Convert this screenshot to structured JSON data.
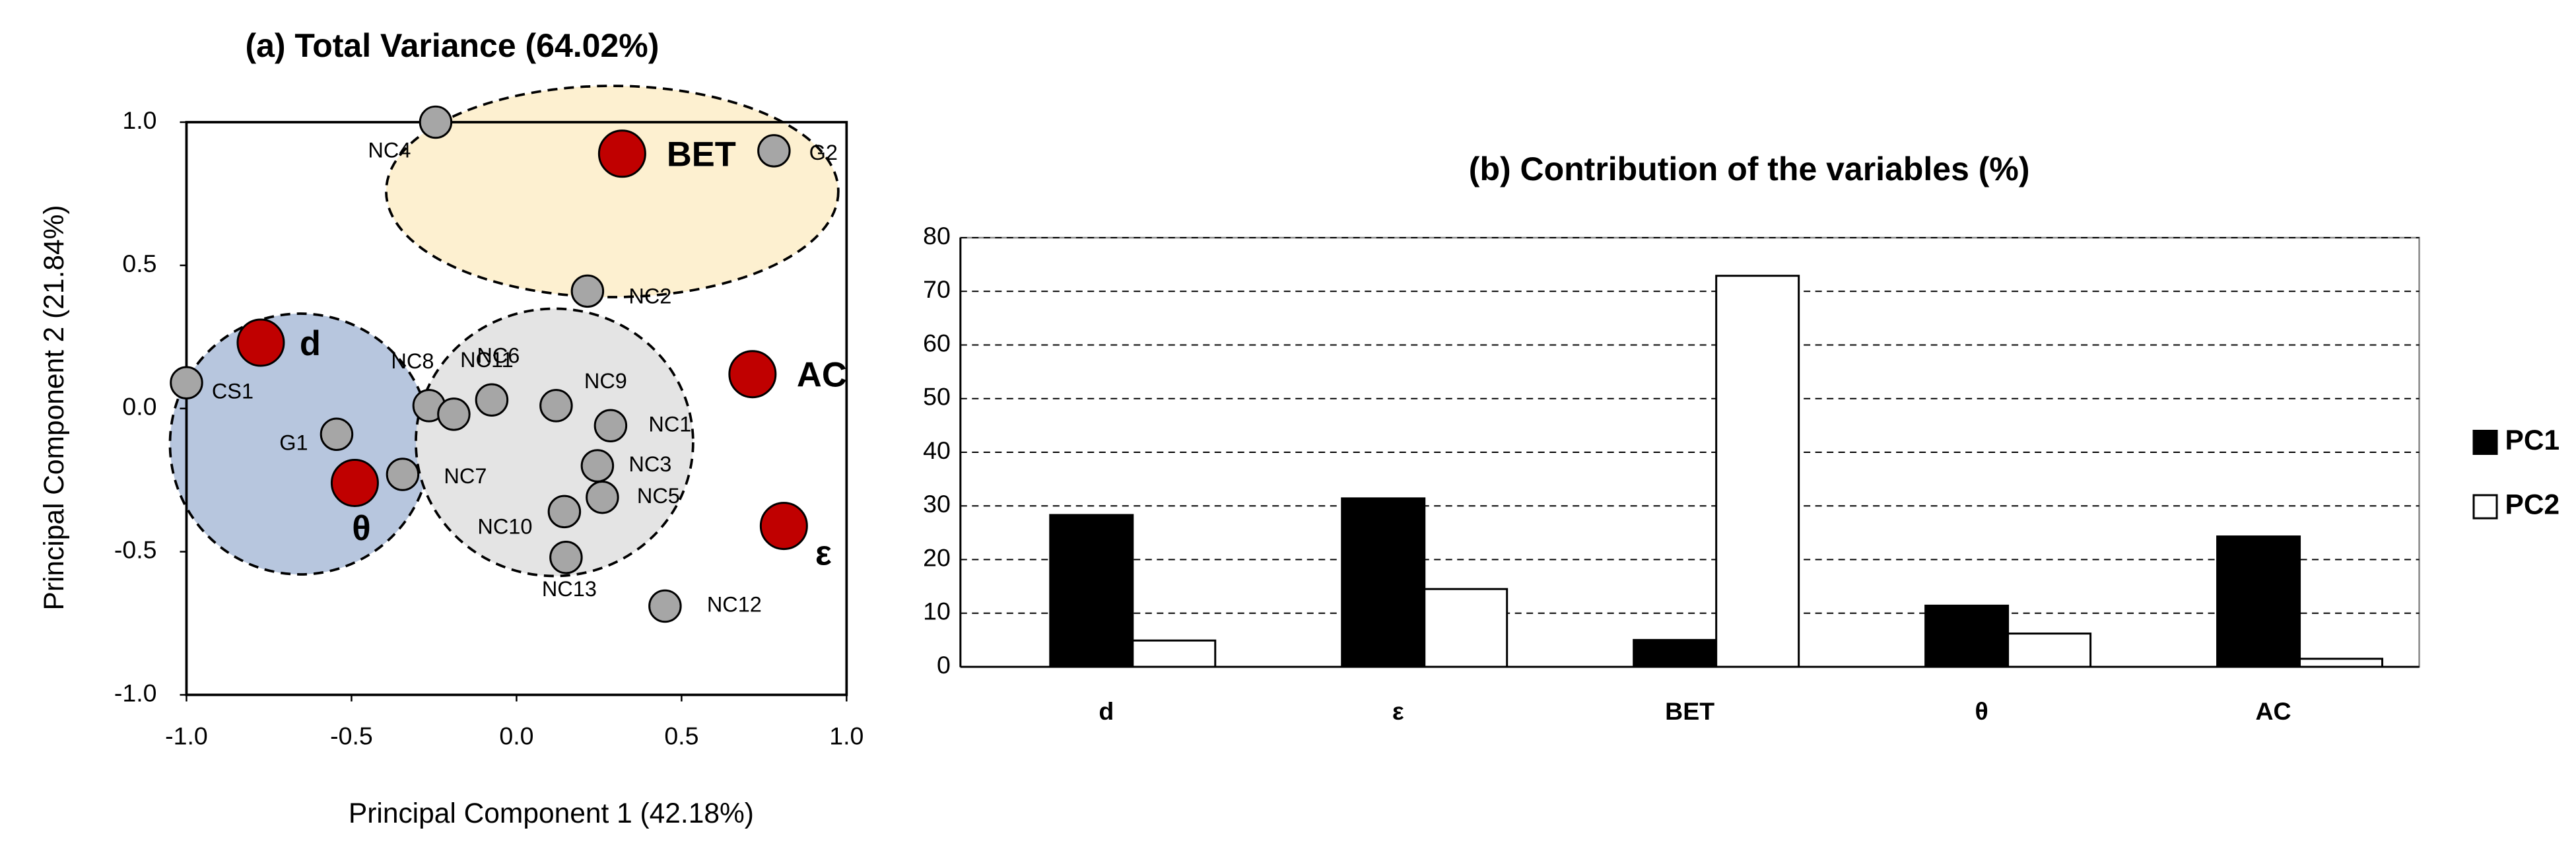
{
  "chart_data": [
    {
      "type": "scatter",
      "title": "(a) Total Variance (64.02%)",
      "x_label": "Principal Component 1 (42.18%)",
      "y_label": "Principal Component 2 (21.84%)",
      "xlim": [
        -1.0,
        1.0
      ],
      "ylim": [
        -1.0,
        1.0
      ],
      "xticks": [
        {
          "value": -1.0,
          "label": "-1.0"
        },
        {
          "value": -0.5,
          "label": "-0.5"
        },
        {
          "value": 0,
          "label": "0.0"
        },
        {
          "value": 0.5,
          "label": "0.5"
        },
        {
          "value": 1.0,
          "label": "1.0"
        }
      ],
      "yticks": [
        {
          "value": -1.0,
          "label": "-1.0"
        },
        {
          "value": -0.5,
          "label": "-0.5"
        },
        {
          "value": 0,
          "label": "0.0"
        },
        {
          "value": 0.5,
          "label": "0.5"
        },
        {
          "value": 1.0,
          "label": "1.0"
        }
      ],
      "series": [
        {
          "color": "#a6a6a6",
          "labels": [
            "NC4",
            "G2",
            "NC2",
            "CS1",
            "G1",
            "NC8",
            "NC11",
            "NC6",
            "NC9",
            "NC1",
            "NC3",
            "NC5",
            "NC10",
            "NC13",
            "NC12",
            "NC7"
          ],
          "x": [
            -0.245,
            0.78,
            0.215,
            -1.0,
            -0.545,
            -0.265,
            -0.19,
            -0.075,
            0.12,
            0.285,
            0.245,
            0.26,
            0.145,
            0.15,
            0.45,
            -0.345
          ],
          "values": [
            1.0,
            0.9,
            0.41,
            0.09,
            -0.09,
            0.01,
            -0.02,
            0.03,
            0.01,
            -0.06,
            -0.2,
            -0.31,
            -0.36,
            -0.52,
            -0.69,
            -0.23
          ]
        },
        {
          "color": "#c00000",
          "labels": [
            "d",
            "BET",
            "AC",
            "ε",
            "θ"
          ],
          "x": [
            -0.775,
            0.32,
            0.715,
            0.81,
            -0.49
          ],
          "values": [
            0.23,
            0.89,
            0.12,
            -0.41,
            -0.26
          ]
        }
      ]
    },
    {
      "type": "bar",
      "title": "(b) Contribution of the variables (%)",
      "categories": [
        "d",
        "ε",
        "BET",
        "θ",
        "AC"
      ],
      "ylim": [
        0,
        80
      ],
      "yticks": [
        0,
        10,
        20,
        30,
        40,
        50,
        60,
        70,
        80
      ],
      "grid": true,
      "legend": "right",
      "series": [
        {
          "name": "PC1",
          "color": "#000000",
          "values": [
            28.3,
            31.4,
            5,
            11.4,
            24.3
          ]
        },
        {
          "name": "PC2",
          "color": "#ffffff",
          "values": [
            4.9,
            14.5,
            72.9,
            6.2,
            1.5
          ]
        }
      ]
    }
  ]
}
